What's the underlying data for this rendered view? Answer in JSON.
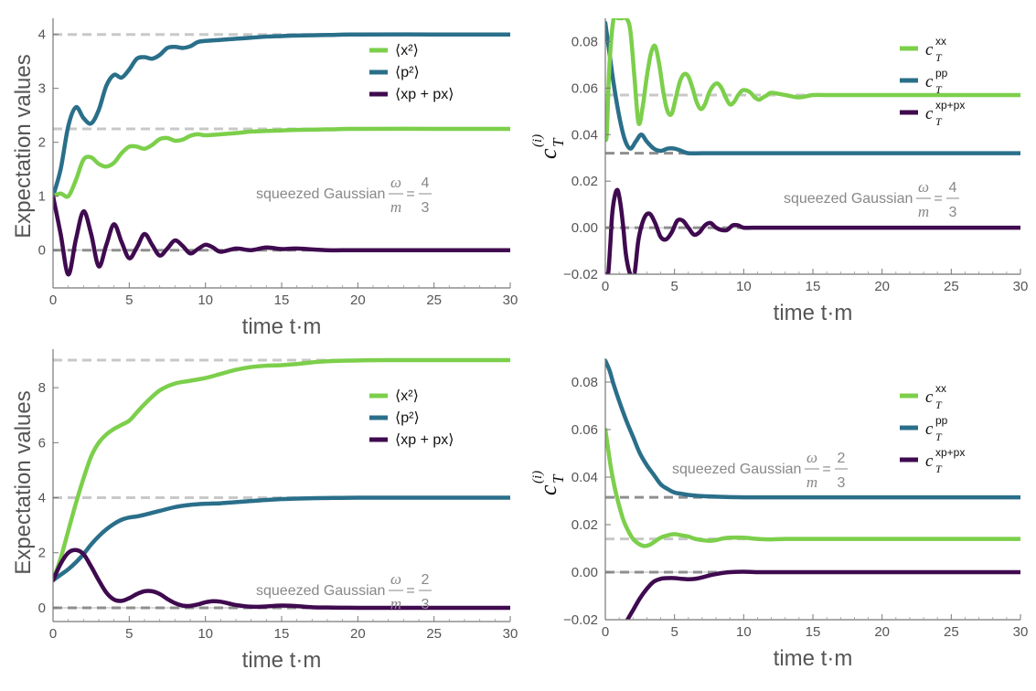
{
  "colors": {
    "x2": "#7ccf4b",
    "p2": "#2a6f8a",
    "xp": "#3f0a4f",
    "ref_dark": "#8f8f8f",
    "ref_light": "#c8c8c8"
  },
  "chart_data": [
    {
      "type": "line",
      "id": "panel-top-left",
      "xlabel": "time t·m",
      "ylabel": "Expectation values",
      "xlim": [
        0,
        30
      ],
      "ylim": [
        -0.7,
        4.3
      ],
      "xticks": [
        0,
        5,
        10,
        15,
        20,
        25,
        30
      ],
      "yticks": [
        0,
        1,
        2,
        3,
        4
      ],
      "legend_position": "top-right",
      "legend": [
        "⟨x²⟩",
        "⟨p²⟩",
        "⟨xp + px⟩"
      ],
      "annotation": {
        "text": "squeezed Gaussian",
        "lhs_num": "ω",
        "lhs_den": "m",
        "rhs_num": "4",
        "rhs_den": "3"
      },
      "reference_lines": [
        4.0,
        2.25,
        0.0
      ],
      "series": [
        {
          "name": "⟨x²⟩",
          "x": [
            0,
            0.5,
            1,
            1.5,
            2,
            2.5,
            3,
            3.5,
            4,
            4.5,
            5,
            5.5,
            6,
            6.5,
            7,
            7.5,
            8,
            8.5,
            9,
            9.5,
            10,
            11,
            12,
            13,
            14,
            15,
            16,
            18,
            20,
            25,
            30
          ],
          "y": [
            1.0,
            1.05,
            1.0,
            1.3,
            1.68,
            1.72,
            1.6,
            1.55,
            1.62,
            1.8,
            1.92,
            1.92,
            1.88,
            1.95,
            2.06,
            2.08,
            2.03,
            2.05,
            2.12,
            2.15,
            2.13,
            2.15,
            2.17,
            2.2,
            2.21,
            2.22,
            2.23,
            2.24,
            2.25,
            2.25,
            2.25
          ]
        },
        {
          "name": "⟨p²⟩",
          "x": [
            0,
            0.5,
            1,
            1.5,
            2,
            2.5,
            3,
            3.5,
            4,
            4.5,
            5,
            5.5,
            6,
            6.5,
            7,
            7.5,
            8,
            8.5,
            9,
            9.5,
            10,
            11,
            12,
            13,
            14,
            15,
            16,
            18,
            20,
            25,
            30
          ],
          "y": [
            1.0,
            1.5,
            2.3,
            2.65,
            2.45,
            2.35,
            2.6,
            3.05,
            3.25,
            3.2,
            3.35,
            3.55,
            3.58,
            3.55,
            3.62,
            3.75,
            3.77,
            3.75,
            3.78,
            3.86,
            3.88,
            3.9,
            3.92,
            3.94,
            3.96,
            3.97,
            3.98,
            3.99,
            4.0,
            4.0,
            4.0
          ]
        },
        {
          "name": "⟨xp + px⟩",
          "x": [
            0,
            0.5,
            1,
            1.5,
            2,
            2.5,
            3,
            3.5,
            4,
            4.5,
            5,
            5.5,
            6,
            6.5,
            7,
            7.5,
            8,
            8.5,
            9,
            9.5,
            10,
            10.5,
            11,
            12,
            13,
            14,
            15,
            16,
            18,
            20,
            25,
            30
          ],
          "y": [
            1.0,
            0.3,
            -0.45,
            0.2,
            0.72,
            0.3,
            -0.3,
            0.1,
            0.48,
            0.15,
            -0.15,
            0.05,
            0.3,
            0.1,
            -0.1,
            0.03,
            0.18,
            0.08,
            -0.06,
            0.02,
            0.1,
            0.05,
            -0.03,
            0.03,
            0.0,
            0.05,
            0.02,
            0.03,
            0.0,
            0.0,
            0.0,
            0.0
          ]
        }
      ]
    },
    {
      "type": "line",
      "id": "panel-top-right",
      "xlabel": "time t·m",
      "ylabel": "c_T^(i)",
      "xlim": [
        0,
        30
      ],
      "ylim": [
        -0.02,
        0.09
      ],
      "xticks": [
        0,
        5,
        10,
        15,
        20,
        25,
        30
      ],
      "yticks": [
        -0.02,
        0.0,
        0.02,
        0.04,
        0.06,
        0.08
      ],
      "ytick_labels": [
        "−0.02",
        "0.00",
        "0.02",
        "0.04",
        "0.06",
        "0.08"
      ],
      "legend_position": "top-right",
      "legend": [
        {
          "base": "c",
          "sub": "T",
          "sup": "xx"
        },
        {
          "base": "c",
          "sub": "T",
          "sup": "pp"
        },
        {
          "base": "c",
          "sub": "T",
          "sup": "xp+px"
        }
      ],
      "annotation": {
        "text": "squeezed Gaussian",
        "lhs_num": "ω",
        "lhs_den": "m",
        "rhs_num": "4",
        "rhs_den": "3"
      },
      "reference_lines": [
        0.057,
        0.032,
        0.0
      ],
      "series": [
        {
          "name": "c_T^xx",
          "x": [
            0,
            0.1,
            0.3,
            0.6,
            0.9,
            1.2,
            1.5,
            1.8,
            2.1,
            2.4,
            2.7,
            3.0,
            3.3,
            3.6,
            3.9,
            4.2,
            4.5,
            4.8,
            5.1,
            5.4,
            5.7,
            6.0,
            6.3,
            6.6,
            6.9,
            7.2,
            7.5,
            7.8,
            8.1,
            8.4,
            8.7,
            9.0,
            9.3,
            9.6,
            9.9,
            10.2,
            10.5,
            10.8,
            11.1,
            11.4,
            11.7,
            12,
            13,
            14,
            15,
            16,
            18,
            20,
            25,
            30
          ],
          "y": [
            0.04,
            0.04,
            0.07,
            0.09,
            0.09,
            0.09,
            0.09,
            0.085,
            0.065,
            0.045,
            0.052,
            0.065,
            0.075,
            0.078,
            0.07,
            0.058,
            0.05,
            0.049,
            0.056,
            0.063,
            0.066,
            0.065,
            0.06,
            0.054,
            0.051,
            0.053,
            0.058,
            0.061,
            0.062,
            0.06,
            0.056,
            0.053,
            0.054,
            0.057,
            0.059,
            0.059,
            0.058,
            0.056,
            0.055,
            0.056,
            0.057,
            0.058,
            0.057,
            0.056,
            0.057,
            0.057,
            0.057,
            0.057,
            0.057,
            0.057
          ]
        },
        {
          "name": "c_T^pp",
          "x": [
            0,
            0.3,
            0.6,
            1.0,
            1.4,
            1.8,
            2.2,
            2.6,
            3.0,
            3.5,
            4.0,
            4.5,
            5.0,
            5.5,
            6,
            7,
            8,
            9,
            10,
            12,
            15,
            20,
            30
          ],
          "y": [
            0.088,
            0.075,
            0.062,
            0.048,
            0.038,
            0.034,
            0.037,
            0.04,
            0.037,
            0.034,
            0.033,
            0.034,
            0.034,
            0.033,
            0.032,
            0.032,
            0.032,
            0.032,
            0.032,
            0.032,
            0.032,
            0.032,
            0.032
          ]
        },
        {
          "name": "c_T^xp+px",
          "x": [
            0,
            0.2,
            0.35,
            0.5,
            0.7,
            0.9,
            1.1,
            1.3,
            1.5,
            1.8,
            2.1,
            2.4,
            2.8,
            3.2,
            3.6,
            4.0,
            4.4,
            4.8,
            5.2,
            5.6,
            6.0,
            6.4,
            6.8,
            7.2,
            7.6,
            8.0,
            8.4,
            8.8,
            9.2,
            9.6,
            10,
            11,
            12,
            13,
            14,
            15,
            17,
            20,
            25,
            30
          ],
          "y": [
            -0.02,
            -0.02,
            -0.008,
            0.006,
            0.014,
            0.016,
            0.01,
            0.0,
            -0.012,
            -0.02,
            -0.02,
            -0.005,
            0.004,
            0.006,
            0.002,
            -0.004,
            -0.005,
            -0.002,
            0.003,
            0.003,
            0.0,
            -0.003,
            -0.002,
            0.001,
            0.002,
            0.0,
            -0.001,
            -0.001,
            0.001,
            0.001,
            0.0,
            0.0,
            0.0,
            0.0,
            0.0,
            0.0,
            0.0,
            0.0,
            0.0,
            0.0
          ]
        }
      ]
    },
    {
      "type": "line",
      "id": "panel-bottom-left",
      "xlabel": "time t·m",
      "ylabel": "Expectation values",
      "xlim": [
        0,
        30
      ],
      "ylim": [
        -0.5,
        9.4
      ],
      "xticks": [
        0,
        5,
        10,
        15,
        20,
        25,
        30
      ],
      "yticks": [
        0,
        2,
        4,
        6,
        8
      ],
      "legend_position": "top-right",
      "legend": [
        "⟨x²⟩",
        "⟨p²⟩",
        "⟨xp + px⟩"
      ],
      "annotation": {
        "text": "squeezed Gaussian",
        "lhs_num": "ω",
        "lhs_den": "m",
        "rhs_num": "2",
        "rhs_den": "3"
      },
      "reference_lines": [
        9.0,
        4.0,
        0.0
      ],
      "series": [
        {
          "name": "⟨x²⟩",
          "x": [
            0,
            0.5,
            1,
            1.5,
            2,
            2.5,
            3,
            3.5,
            4,
            4.5,
            5,
            5.5,
            6,
            7,
            8,
            9,
            10,
            11,
            12,
            13,
            14,
            15,
            16,
            17,
            18,
            20,
            22,
            25,
            30
          ],
          "y": [
            1.0,
            1.8,
            2.8,
            3.8,
            4.7,
            5.5,
            6.0,
            6.3,
            6.5,
            6.65,
            6.8,
            7.1,
            7.4,
            7.9,
            8.15,
            8.25,
            8.35,
            8.5,
            8.65,
            8.75,
            8.8,
            8.82,
            8.86,
            8.92,
            8.96,
            8.99,
            9.0,
            9.0,
            9.0
          ]
        },
        {
          "name": "⟨p²⟩",
          "x": [
            0,
            0.5,
            1,
            1.5,
            2,
            2.5,
            3,
            3.5,
            4,
            4.5,
            5,
            5.5,
            6,
            7,
            8,
            9,
            10,
            11,
            12,
            13,
            14,
            15,
            16,
            18,
            20,
            25,
            30
          ],
          "y": [
            1.0,
            1.2,
            1.4,
            1.65,
            1.95,
            2.3,
            2.6,
            2.85,
            3.05,
            3.2,
            3.28,
            3.32,
            3.38,
            3.52,
            3.66,
            3.74,
            3.78,
            3.8,
            3.84,
            3.88,
            3.92,
            3.95,
            3.97,
            3.99,
            4.0,
            4.0,
            4.0
          ]
        },
        {
          "name": "⟨xp + px⟩",
          "x": [
            0,
            0.5,
            1,
            1.5,
            2,
            2.5,
            3,
            3.5,
            4,
            4.5,
            5,
            5.5,
            6,
            6.5,
            7,
            7.5,
            8,
            8.5,
            9,
            9.5,
            10,
            10.5,
            11,
            11.5,
            12,
            13,
            14,
            15,
            16,
            17,
            18,
            20,
            25,
            30
          ],
          "y": [
            1.0,
            1.6,
            2.0,
            2.1,
            1.95,
            1.5,
            1.0,
            0.55,
            0.3,
            0.25,
            0.35,
            0.5,
            0.6,
            0.6,
            0.5,
            0.32,
            0.17,
            0.08,
            0.07,
            0.12,
            0.2,
            0.24,
            0.22,
            0.16,
            0.1,
            0.04,
            0.05,
            0.08,
            0.06,
            0.02,
            0.01,
            0.0,
            0.0,
            0.0
          ]
        }
      ]
    },
    {
      "type": "line",
      "id": "panel-bottom-right",
      "xlabel": "time t·m",
      "ylabel": "c_T^(i)",
      "xlim": [
        0,
        30
      ],
      "ylim": [
        -0.02,
        0.09
      ],
      "xticks": [
        0,
        5,
        10,
        15,
        20,
        25,
        30
      ],
      "yticks": [
        -0.02,
        0.0,
        0.02,
        0.04,
        0.06,
        0.08
      ],
      "ytick_labels": [
        "−0.02",
        "0.00",
        "0.02",
        "0.04",
        "0.06",
        "0.08"
      ],
      "legend_position": "top-right",
      "legend": [
        {
          "base": "c",
          "sub": "T",
          "sup": "xx"
        },
        {
          "base": "c",
          "sub": "T",
          "sup": "pp"
        },
        {
          "base": "c",
          "sub": "T",
          "sup": "xp+px"
        }
      ],
      "annotation": {
        "text": "squeezed Gaussian",
        "lhs_num": "ω",
        "lhs_den": "m",
        "rhs_num": "2",
        "rhs_den": "3"
      },
      "reference_lines": [
        0.0315,
        0.014,
        0.0
      ],
      "series": [
        {
          "name": "c_T^xx",
          "x": [
            0,
            0.2,
            0.4,
            0.7,
            1.0,
            1.3,
            1.6,
            2.0,
            2.4,
            2.8,
            3.2,
            3.6,
            4.0,
            4.5,
            5,
            5.5,
            6,
            6.5,
            7,
            7.5,
            8,
            8.5,
            9,
            10,
            11,
            12,
            13,
            15,
            20,
            25,
            30
          ],
          "y": [
            0.06,
            0.052,
            0.044,
            0.035,
            0.028,
            0.022,
            0.018,
            0.014,
            0.012,
            0.011,
            0.0115,
            0.013,
            0.0145,
            0.0155,
            0.016,
            0.0155,
            0.015,
            0.014,
            0.0135,
            0.0132,
            0.0135,
            0.0142,
            0.0145,
            0.0145,
            0.014,
            0.0138,
            0.014,
            0.014,
            0.014,
            0.014,
            0.014
          ]
        },
        {
          "name": "c_T^pp",
          "x": [
            0,
            0.3,
            0.6,
            1.0,
            1.5,
            2.0,
            2.5,
            3.0,
            3.5,
            4.0,
            4.5,
            5,
            5.5,
            6,
            7,
            8,
            9,
            10,
            12,
            15,
            20,
            25,
            30
          ],
          "y": [
            0.089,
            0.085,
            0.079,
            0.072,
            0.064,
            0.057,
            0.05,
            0.045,
            0.041,
            0.037,
            0.035,
            0.0335,
            0.033,
            0.0325,
            0.032,
            0.0318,
            0.0316,
            0.0315,
            0.0315,
            0.0315,
            0.0315,
            0.0315,
            0.0315
          ]
        },
        {
          "name": "c_T^xp+px",
          "x": [
            1.6,
            2.0,
            2.5,
            3.0,
            3.5,
            4.0,
            4.5,
            5,
            5.5,
            6,
            6.5,
            7,
            7.5,
            8,
            8.5,
            9,
            10,
            11,
            12,
            14,
            16,
            20,
            25,
            30
          ],
          "y": [
            -0.02,
            -0.016,
            -0.011,
            -0.007,
            -0.004,
            -0.0028,
            -0.0025,
            -0.0025,
            -0.0028,
            -0.003,
            -0.0028,
            -0.0022,
            -0.0014,
            -0.0008,
            -0.0003,
            0.0,
            0.0002,
            0.0,
            0.0,
            0.0,
            0.0,
            0.0,
            0.0,
            0.0
          ]
        }
      ]
    }
  ]
}
